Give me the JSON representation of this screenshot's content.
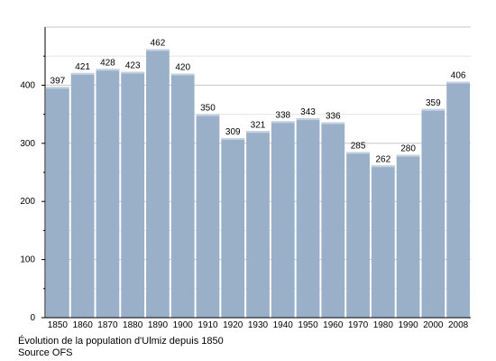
{
  "chart_data": {
    "type": "bar",
    "categories": [
      "1850",
      "1860",
      "1870",
      "1880",
      "1890",
      "1900",
      "1910",
      "1920",
      "1930",
      "1940",
      "1950",
      "1960",
      "1970",
      "1980",
      "1990",
      "2000",
      "2008"
    ],
    "values": [
      397,
      421,
      428,
      423,
      462,
      420,
      350,
      309,
      321,
      338,
      343,
      336,
      285,
      262,
      280,
      359,
      406
    ],
    "ylim": [
      0,
      500
    ],
    "yticks": [
      0,
      100,
      200,
      300,
      400
    ],
    "grid": true,
    "legend": "none",
    "bar_color": "#9ab0c8",
    "caption": "Évolution de la population d'Ulmiz depuis 1850",
    "source": "Source OFS"
  }
}
